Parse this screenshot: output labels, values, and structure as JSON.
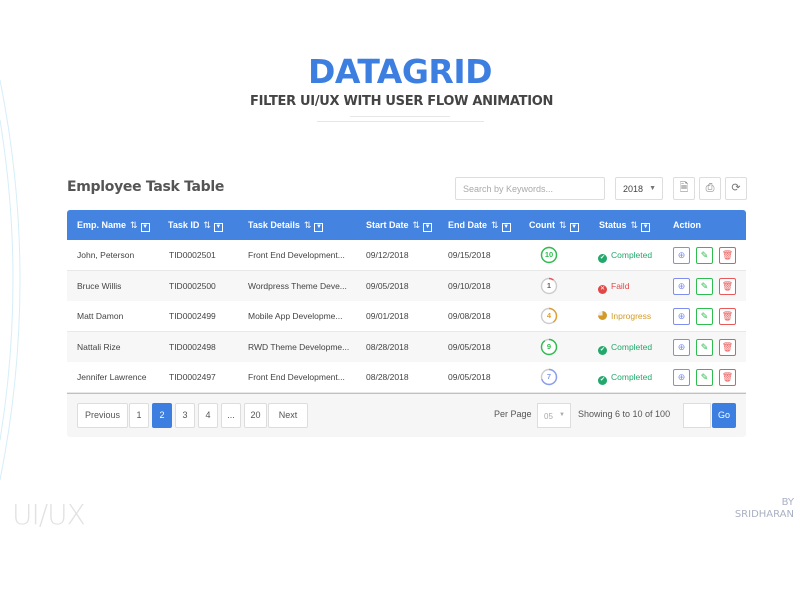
{
  "header": {
    "title": "DATAGRID",
    "subtitle": "FILTER UI/UX WITH USER FLOW ANIMATION"
  },
  "table": {
    "title": "Employee Task Table",
    "search_placeholder": "Search by Keywords...",
    "year": "2018",
    "toolbar_icons": [
      "document-icon",
      "print-icon",
      "refresh-icon"
    ],
    "columns": [
      "Emp. Name",
      "Task ID",
      "Task Details",
      "Start Date",
      "End Date",
      "Count",
      "Status",
      "Action"
    ],
    "rows": [
      {
        "name": "John, Peterson",
        "id": "TID0002501",
        "details": "Front End Development...",
        "start": "09/12/2018",
        "end": "09/15/2018",
        "count": "10",
        "count_progress": 1.0,
        "ring_color": "#2ebd4f",
        "status": "Completed",
        "status_color": "#22a86a",
        "status_icon": "check-circle-icon"
      },
      {
        "name": "Bruce Willis",
        "id": "TID0002500",
        "details": "Wordpress Theme Deve...",
        "start": "09/05/2018",
        "end": "09/10/2018",
        "count": "1",
        "count_progress": 0.1,
        "ring_color": "#e85a5a",
        "status": "Faild",
        "status_color": "#e04848",
        "status_icon": "x-circle-icon"
      },
      {
        "name": "Matt Damon",
        "id": "TID0002499",
        "details": "Mobile App Developme...",
        "start": "09/01/2018",
        "end": "09/08/2018",
        "count": "4",
        "count_progress": 0.4,
        "ring_color": "#e0a030",
        "status": "Inprogress",
        "status_color": "#d39a28",
        "status_icon": "pie-progress-icon"
      },
      {
        "name": "Nattali Rize",
        "id": "TID0002498",
        "details": "RWD Theme Developme...",
        "start": "08/28/2018",
        "end": "09/05/2018",
        "count": "9",
        "count_progress": 0.9,
        "ring_color": "#2ebd4f",
        "status": "Completed",
        "status_color": "#22a86a",
        "status_icon": "check-circle-icon"
      },
      {
        "name": "Jennifer Lawrence",
        "id": "TID0002497",
        "details": "Front End Development...",
        "start": "08/28/2018",
        "end": "09/05/2018",
        "count": "7",
        "count_progress": 0.7,
        "ring_color": "#8a9ef0",
        "status": "Completed",
        "status_color": "#22a86a",
        "status_icon": "check-circle-icon"
      }
    ],
    "action_colors": {
      "view": "#7f8ff0",
      "edit": "#2ebd4f",
      "delete": "#e85a5a"
    }
  },
  "pagination": {
    "previous": "Previous",
    "next": "Next",
    "pages": [
      "1",
      "2",
      "3",
      "4",
      "...",
      "20"
    ],
    "active_page": "2",
    "per_page_label": "Per Page",
    "per_page": "05",
    "showing": "Showing  6 to 10 of 100",
    "go": "Go"
  },
  "footer": {
    "brand": "UI/UX",
    "by": "BY",
    "author": "SRIDHARAN"
  },
  "accent": "#3d7fe0"
}
